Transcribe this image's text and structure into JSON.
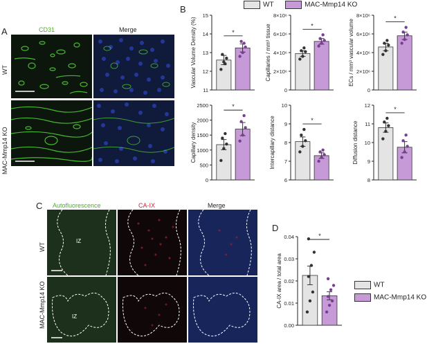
{
  "panel_A": {
    "letter": "A",
    "col_labels": [
      "CD31",
      "Merge"
    ],
    "row_labels": [
      "WT",
      "MAC-Mmp14 KO"
    ]
  },
  "panel_B": {
    "letter": "B",
    "legend": [
      "WT",
      "MAC-Mmp14 KO"
    ]
  },
  "panel_C": {
    "letter": "C",
    "col_labels": [
      "Autofluorescence",
      "CA-IX",
      "Merge"
    ],
    "row_labels": [
      "WT",
      "MAC-Mmp14 KO"
    ],
    "region_label": "IZ"
  },
  "panel_D": {
    "letter": "D",
    "legend": [
      "WT",
      "MAC-Mmp14 KO"
    ]
  },
  "colors": {
    "wt": "#e4e4e4",
    "ko": "#c59ad6",
    "ko_dot": "#7a3d96",
    "wt_dot": "#333333"
  },
  "chart_data": [
    {
      "type": "bar",
      "ylabel": "Vascular Volume Density (%)",
      "yticks": [
        "11",
        "12",
        "13",
        "14",
        "15"
      ],
      "ylim": [
        11,
        15
      ],
      "sig": "*",
      "series": [
        {
          "name": "WT",
          "value": 12.6,
          "sem": 0.25,
          "points": [
            12.1,
            12.5,
            12.7,
            12.9,
            12.4
          ]
        },
        {
          "name": "MAC-Mmp14 KO",
          "value": 13.25,
          "sem": 0.22,
          "points": [
            12.8,
            13.0,
            13.3,
            13.6,
            13.5
          ]
        }
      ]
    },
    {
      "type": "bar",
      "ylabel": "Capillaries / mm³ tissue",
      "yticks": [
        "0",
        "2×10⁶",
        "4×10⁶",
        "6×10⁶",
        "8×10⁶"
      ],
      "ylim": [
        0,
        8000000
      ],
      "sig": "*",
      "series": [
        {
          "name": "WT",
          "value": 3900000,
          "sem": 300000,
          "points": [
            3300000,
            3600000,
            4100000,
            4200000,
            4500000
          ]
        },
        {
          "name": "MAC-Mmp14 KO",
          "value": 5200000,
          "sem": 300000,
          "points": [
            4700000,
            5000000,
            5300000,
            5500000,
            5900000
          ]
        }
      ]
    },
    {
      "type": "bar",
      "ylabel": "ECs / mm³ vascular volume",
      "yticks": [
        "0",
        "2×10⁶",
        "4×10⁶",
        "6×10⁶",
        "8×10⁶"
      ],
      "ylim": [
        0,
        8000000
      ],
      "sig": "*",
      "series": [
        {
          "name": "WT",
          "value": 4600000,
          "sem": 400000,
          "points": [
            3800000,
            4200000,
            4800000,
            5000000,
            5300000
          ]
        },
        {
          "name": "MAC-Mmp14 KO",
          "value": 5800000,
          "sem": 400000,
          "points": [
            5000000,
            5400000,
            5900000,
            6200000,
            6700000
          ]
        }
      ]
    },
    {
      "type": "bar",
      "ylabel": "Capillary density",
      "yticks": [
        "0",
        "500",
        "1000",
        "1500",
        "2000",
        "2500"
      ],
      "ylim": [
        0,
        2500
      ],
      "sig": "*",
      "series": [
        {
          "name": "WT",
          "value": 1180,
          "sem": 170,
          "points": [
            650,
            1050,
            1200,
            1400,
            1550
          ]
        },
        {
          "name": "MAC-Mmp14 KO",
          "value": 1700,
          "sem": 220,
          "points": [
            1300,
            1500,
            1750,
            1950,
            2150
          ]
        }
      ]
    },
    {
      "type": "bar",
      "ylabel": "Intercapillary distance",
      "yticks": [
        "6",
        "7",
        "8",
        "9",
        "10"
      ],
      "ylim": [
        6,
        10
      ],
      "sig": "*",
      "series": [
        {
          "name": "WT",
          "value": 8.05,
          "sem": 0.25,
          "points": [
            7.5,
            7.8,
            8.1,
            8.4,
            8.7
          ]
        },
        {
          "name": "MAC-Mmp14 KO",
          "value": 7.3,
          "sem": 0.15,
          "points": [
            7.0,
            7.2,
            7.35,
            7.5,
            7.6
          ]
        }
      ]
    },
    {
      "type": "bar",
      "ylabel": "Diffusion distance",
      "yticks": [
        "8",
        "9",
        "10",
        "11",
        "12"
      ],
      "ylim": [
        8,
        12
      ],
      "sig": "*",
      "series": [
        {
          "name": "WT",
          "value": 10.8,
          "sem": 0.25,
          "points": [
            10.2,
            10.6,
            10.9,
            11.1,
            11.3
          ]
        },
        {
          "name": "MAC-Mmp14 KO",
          "value": 9.75,
          "sem": 0.3,
          "points": [
            9.2,
            9.5,
            9.8,
            10.1,
            10.4
          ]
        }
      ]
    },
    {
      "type": "bar",
      "ylabel": "CA-IX area / total area",
      "yticks": [
        "0.00",
        "0.01",
        "0.02",
        "0.03",
        "0.04"
      ],
      "ylim": [
        0,
        0.04
      ],
      "sig": "*",
      "series": [
        {
          "name": "WT",
          "value": 0.0225,
          "sem": 0.0042,
          "points": [
            0.006,
            0.011,
            0.015,
            0.022,
            0.027,
            0.033,
            0.039
          ]
        },
        {
          "name": "MAC-Mmp14 KO",
          "value": 0.0133,
          "sem": 0.0018,
          "points": [
            0.006,
            0.009,
            0.011,
            0.013,
            0.016,
            0.018,
            0.021
          ]
        }
      ]
    }
  ]
}
